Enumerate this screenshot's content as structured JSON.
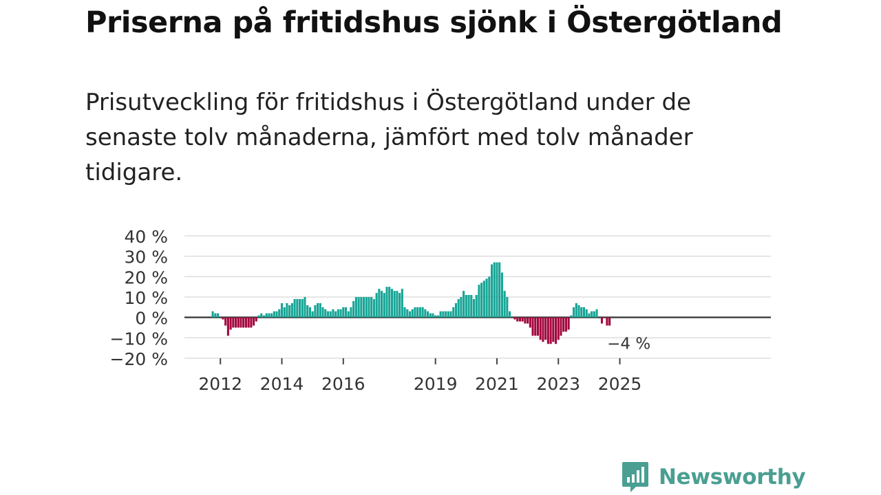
{
  "header": {
    "title": "Priserna på fritidshus sjönk i Östergötland",
    "subtitle": "Prisutveckling för fritidshus i Östergötland under de senaste tolv månaderna, jämfört med tolv månader tidigare."
  },
  "brand": {
    "name": "Newsworthy",
    "icon": "newsworthy-logo-icon"
  },
  "chart_data": {
    "type": "bar",
    "title": "",
    "xlabel": "",
    "ylabel": "",
    "ylim": [
      -20,
      40
    ],
    "yticks": [
      40,
      30,
      20,
      10,
      0,
      -10,
      -20
    ],
    "ytick_labels": [
      "40 %",
      "30 %",
      "20 %",
      "10 %",
      "0 %",
      "−10 %",
      "−20 %"
    ],
    "xticks": [
      {
        "label": "2012",
        "year": 2012
      },
      {
        "label": "2014",
        "year": 2014
      },
      {
        "label": "2016",
        "year": 2016
      },
      {
        "label": "2019",
        "year": 2019
      },
      {
        "label": "2021",
        "year": 2021
      },
      {
        "label": "2023",
        "year": 2023
      },
      {
        "label": "2025",
        "year": 2025
      }
    ],
    "start": "2011-10",
    "frequency": "monthly",
    "unit": "%",
    "colors": {
      "positive": "#17a596",
      "negative": "#a3073e",
      "zero_line": "#444444",
      "grid": "#dddddd"
    },
    "annotation": {
      "label": "−4 %",
      "value": -4
    },
    "values": [
      3,
      2,
      2,
      0,
      -1,
      -4,
      -9,
      -6,
      -5,
      -5,
      -5,
      -5,
      -5,
      -5,
      -5,
      -5,
      -4,
      -2,
      1,
      2,
      1,
      2,
      2,
      2,
      3,
      3,
      4,
      7,
      5,
      7,
      6,
      7,
      9,
      9,
      9,
      9,
      10,
      6,
      5,
      3,
      6,
      7,
      7,
      5,
      4,
      3,
      3,
      4,
      3,
      4,
      4,
      5,
      5,
      3,
      5,
      8,
      10,
      10,
      10,
      10,
      10,
      10,
      10,
      9,
      12,
      14,
      13,
      12,
      15,
      15,
      14,
      13,
      13,
      12,
      14,
      5,
      4,
      3,
      4,
      5,
      5,
      5,
      5,
      4,
      3,
      2,
      2,
      1,
      1,
      3,
      3,
      3,
      3,
      3,
      5,
      7,
      9,
      10,
      13,
      11,
      11,
      11,
      9,
      11,
      16,
      17,
      18,
      19,
      20,
      26,
      27,
      27,
      27,
      22,
      13,
      10,
      3,
      0,
      -1,
      -2,
      -2,
      -2,
      -3,
      -3,
      -5,
      -9,
      -9,
      -9,
      -11,
      -12,
      -11,
      -13,
      -13,
      -12,
      -13,
      -11,
      -9,
      -7,
      -7,
      -6,
      1,
      5,
      7,
      6,
      5,
      5,
      4,
      2,
      3,
      3,
      4,
      0,
      -3,
      0,
      -4,
      -4
    ]
  }
}
